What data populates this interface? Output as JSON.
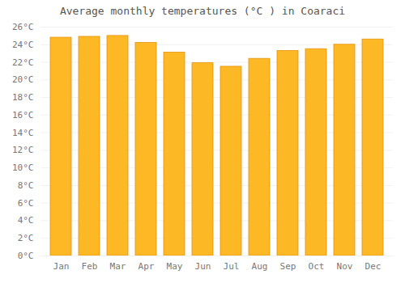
{
  "chart_data": {
    "type": "bar",
    "title": "Average monthly temperatures (°C ) in Coaraci",
    "categories": [
      "Jan",
      "Feb",
      "Mar",
      "Apr",
      "May",
      "Jun",
      "Jul",
      "Aug",
      "Sep",
      "Oct",
      "Nov",
      "Dec"
    ],
    "values": [
      24.8,
      24.9,
      25.0,
      24.2,
      23.1,
      21.9,
      21.5,
      22.4,
      23.3,
      23.5,
      24.0,
      24.6
    ],
    "color": "#FDB825",
    "ylim": [
      0,
      26
    ],
    "yticks": [
      {
        "value": 0,
        "label": "0°C"
      },
      {
        "value": 2,
        "label": "2°C"
      },
      {
        "value": 4,
        "label": "4°C"
      },
      {
        "value": 6,
        "label": "6°C"
      },
      {
        "value": 8,
        "label": "8°C"
      },
      {
        "value": 10,
        "label": "10°C"
      },
      {
        "value": 12,
        "label": "12°C"
      },
      {
        "value": 14,
        "label": "14°C"
      },
      {
        "value": 16,
        "label": "16°C"
      },
      {
        "value": 18,
        "label": "18°C"
      },
      {
        "value": 20,
        "label": "20°C"
      },
      {
        "value": 22,
        "label": "22°C"
      },
      {
        "value": 24,
        "label": "24°C"
      },
      {
        "value": 26,
        "label": "26°C"
      }
    ],
    "grid": true
  }
}
